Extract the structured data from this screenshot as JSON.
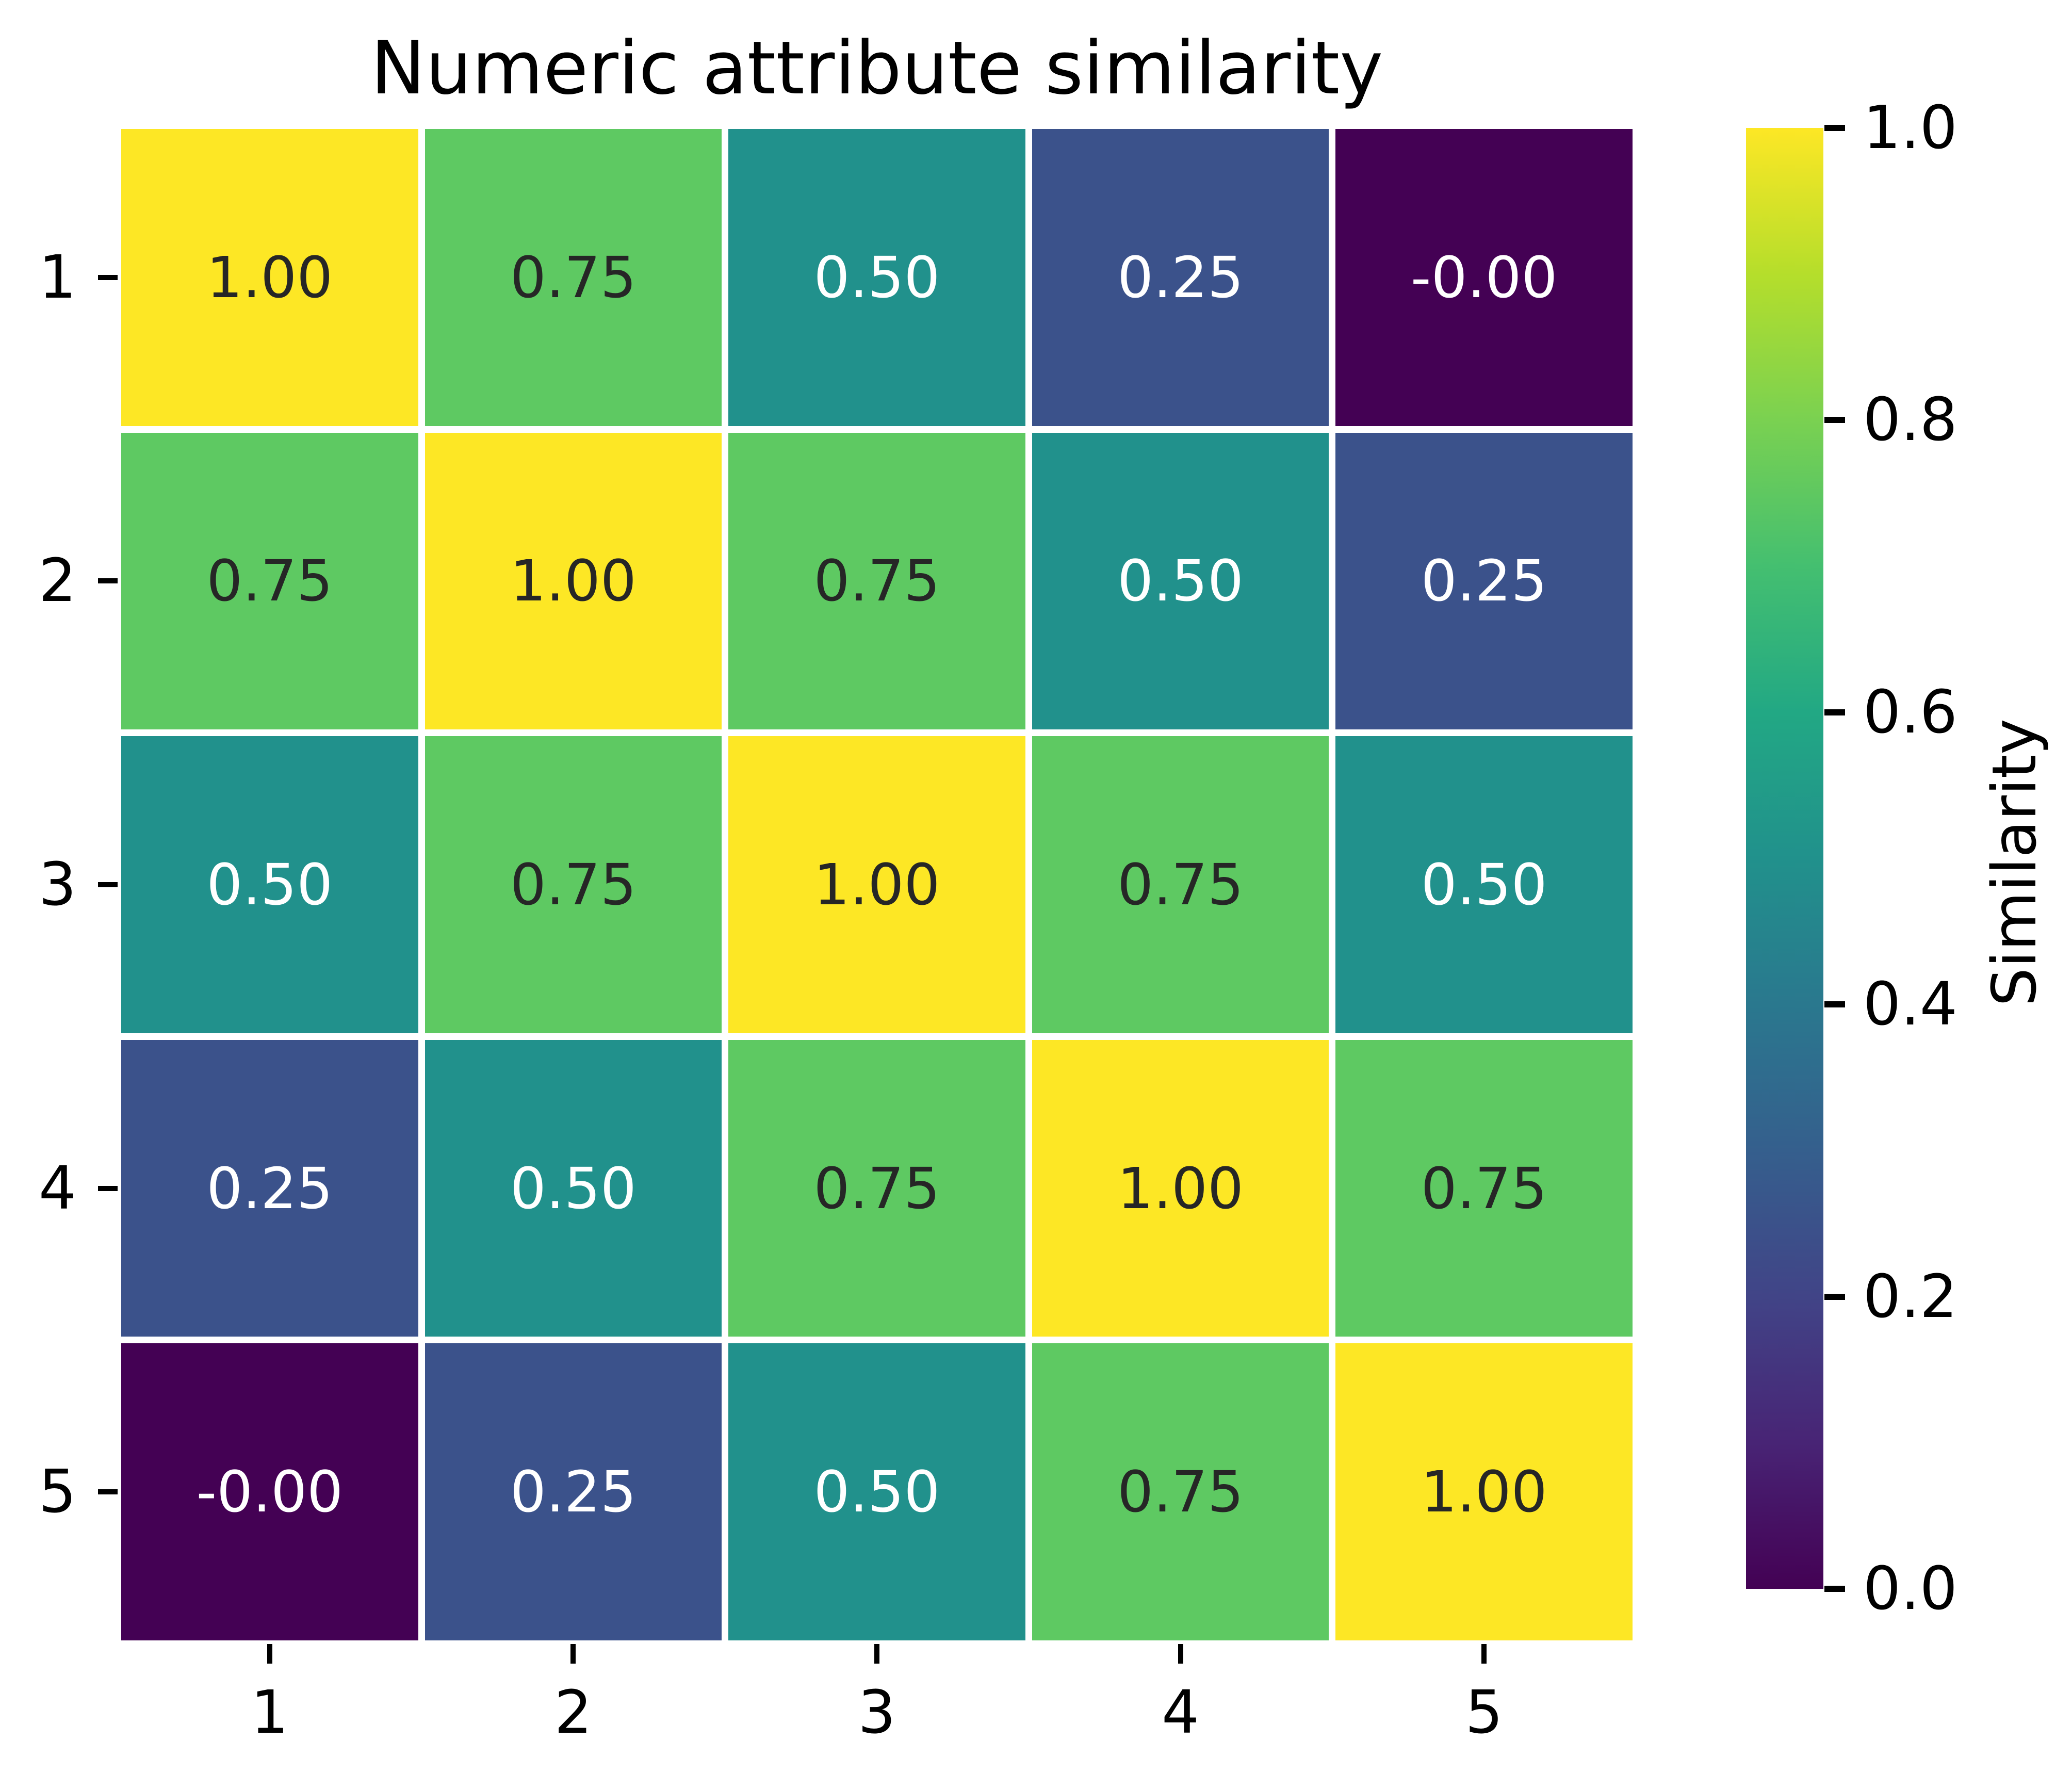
{
  "title": "Numeric attribute similarity",
  "chart_data": {
    "type": "heatmap",
    "title": "Numeric attribute similarity",
    "x_categories": [
      "1",
      "2",
      "3",
      "4",
      "5"
    ],
    "y_categories": [
      "1",
      "2",
      "3",
      "4",
      "5"
    ],
    "values": [
      [
        1.0,
        0.75,
        0.5,
        0.25,
        -0.0
      ],
      [
        0.75,
        1.0,
        0.75,
        0.5,
        0.25
      ],
      [
        0.5,
        0.75,
        1.0,
        0.75,
        0.5
      ],
      [
        0.25,
        0.5,
        0.75,
        1.0,
        0.75
      ],
      [
        -0.0,
        0.25,
        0.5,
        0.75,
        1.0
      ]
    ],
    "cell_labels": [
      [
        "1.00",
        "0.75",
        "0.50",
        "0.25",
        "-0.00"
      ],
      [
        "0.75",
        "1.00",
        "0.75",
        "0.50",
        "0.25"
      ],
      [
        "0.50",
        "0.75",
        "1.00",
        "0.75",
        "0.50"
      ],
      [
        "0.25",
        "0.50",
        "0.75",
        "1.00",
        "0.75"
      ],
      [
        "-0.00",
        "0.25",
        "0.50",
        "0.75",
        "1.00"
      ]
    ],
    "value_styles": {
      "1.00": {
        "bg": "#fde725",
        "fg": "#262626"
      },
      "0.75": {
        "bg": "#5ec962",
        "fg": "#262626"
      },
      "0.50": {
        "bg": "#21918c",
        "fg": "#ffffff"
      },
      "0.25": {
        "bg": "#3b528b",
        "fg": "#ffffff"
      },
      "-0.00": {
        "bg": "#440154",
        "fg": "#ffffff"
      }
    },
    "colormap": "viridis",
    "grid_line_color": "#ffffff",
    "colorbar": {
      "label": "Similarity",
      "ticks": [
        "1.0",
        "0.8",
        "0.6",
        "0.4",
        "0.2",
        "0.0"
      ],
      "range": [
        0.0,
        1.0
      ],
      "gradient_stops_top_to_bottom": [
        "#fde725",
        "#b5de2b",
        "#7ad151",
        "#44bf70",
        "#22a884",
        "#21918c",
        "#2a788e",
        "#355f8d",
        "#414487",
        "#482475",
        "#440154"
      ]
    },
    "legend_position": "right",
    "grid": false
  }
}
